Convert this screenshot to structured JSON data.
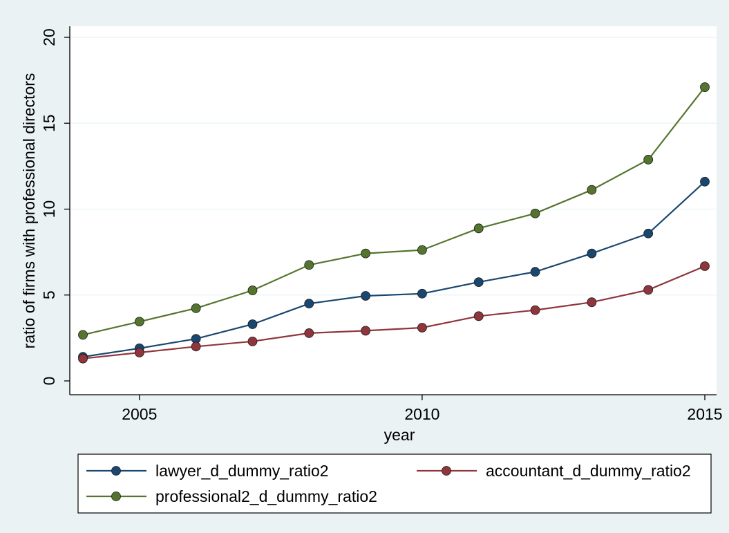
{
  "chart_data": {
    "type": "line",
    "xlabel": "year",
    "ylabel": "ratio of firms with professional directors",
    "x": [
      2004,
      2005,
      2006,
      2007,
      2008,
      2009,
      2010,
      2011,
      2012,
      2013,
      2014,
      2015
    ],
    "xlim": [
      2004,
      2015
    ],
    "ylim": [
      0,
      20
    ],
    "xticks": [
      2005,
      2010,
      2015
    ],
    "yticks": [
      0,
      5,
      10,
      15,
      20
    ],
    "grid": true,
    "legend_position": "bottom",
    "series": [
      {
        "name": "lawyer_d_dummy_ratio2",
        "color": "#1a476f",
        "values": [
          1.4,
          1.9,
          2.45,
          3.3,
          4.5,
          4.95,
          5.08,
          5.75,
          6.35,
          7.42,
          8.58,
          11.6
        ]
      },
      {
        "name": "accountant_d_dummy_ratio2",
        "color": "#90353b",
        "values": [
          1.3,
          1.65,
          2.0,
          2.3,
          2.78,
          2.92,
          3.1,
          3.77,
          4.12,
          4.58,
          5.3,
          6.68
        ]
      },
      {
        "name": "professional2_d_dummy_ratio2",
        "color": "#55752f",
        "values": [
          2.68,
          3.45,
          4.23,
          5.27,
          6.75,
          7.42,
          7.62,
          8.88,
          9.75,
          11.12,
          12.88,
          17.1
        ]
      }
    ],
    "colors": {
      "background": "#eaf2f3",
      "plot_background": "#ffffff",
      "grid": "#eaf2f3"
    }
  }
}
